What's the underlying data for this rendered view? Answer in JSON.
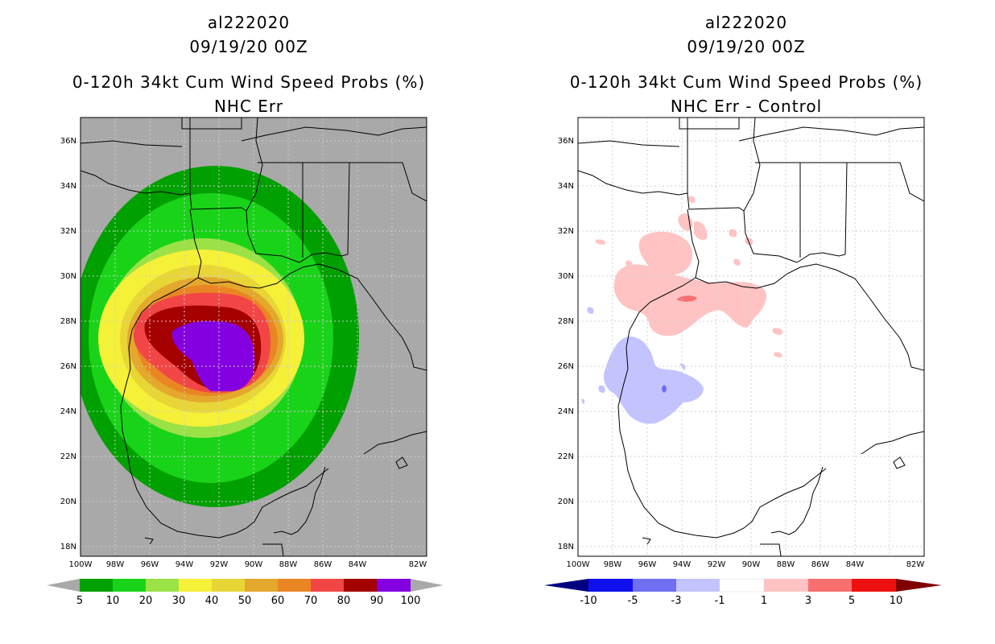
{
  "colors": {
    "land_bg": "#a9a9a9",
    "coast": "#000000",
    "grid": "#cfcfcf",
    "prob_bins": [
      "#00a000",
      "#19d319",
      "#9be246",
      "#f5f038",
      "#e8d637",
      "#e3a82c",
      "#ea8524",
      "#f24646",
      "#a50000",
      "#8500e0"
    ],
    "prob_bins_names": [
      "5-10",
      "10-20",
      "20-30",
      "30-40",
      "40-50",
      "50-60",
      "60-70",
      "70-80",
      "80-90",
      "90-100"
    ],
    "diff_bins": [
      "#000080",
      "#1010ee",
      "#6f6ff2",
      "#c3c3ff",
      "#ffffff",
      "#ffc3c3",
      "#f76f6f",
      "#ee1010",
      "#800000"
    ]
  },
  "left_panel": {
    "storm_id": "al222020",
    "datetime": "09/19/20 00Z",
    "title": "0-120h 34kt Cum Wind Speed Probs (%)",
    "subtitle": "NHC Err",
    "colorbar_labels": [
      "5",
      "10",
      "20",
      "30",
      "40",
      "50",
      "60",
      "70",
      "80",
      "90",
      "100"
    ]
  },
  "right_panel": {
    "storm_id": "al222020",
    "datetime": "09/19/20 00Z",
    "title": "0-120h 34kt Cum Wind Speed Probs (%)",
    "subtitle": "NHC Err - Control",
    "colorbar_labels": [
      "-10",
      "-5",
      "-3",
      "-1",
      "1",
      "3",
      "5",
      "10"
    ]
  },
  "axes": {
    "lat_labels": [
      "36N",
      "34N",
      "32N",
      "30N",
      "28N",
      "26N",
      "24N",
      "22N",
      "20N",
      "18N"
    ],
    "lon_labels": [
      "100W",
      "98W",
      "96W",
      "94W",
      "92W",
      "90W",
      "88W",
      "86W",
      "84W",
      "82W"
    ]
  }
}
